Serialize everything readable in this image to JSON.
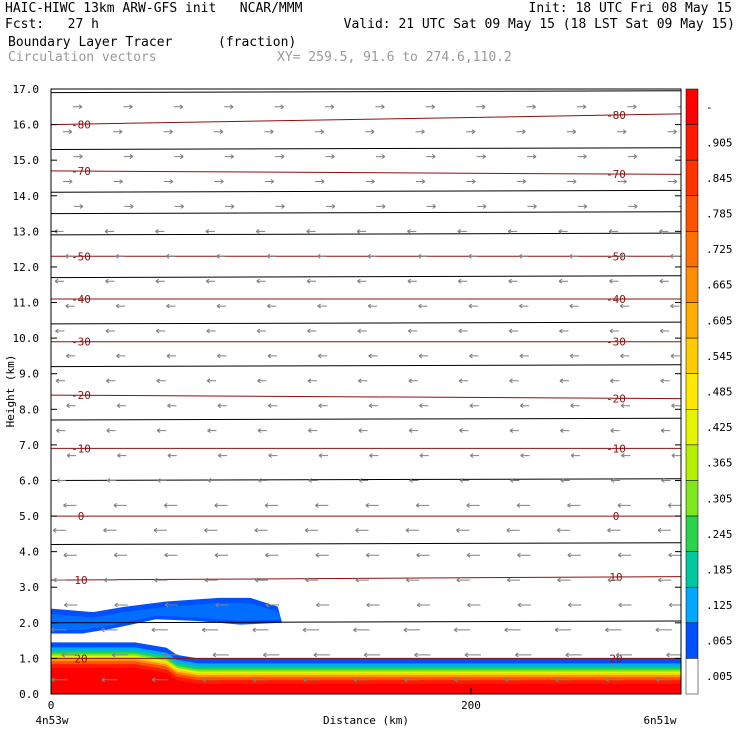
{
  "header": {
    "line1_left": "HAIC-HIWC 13km ARW-GFS init   NCAR/MMM",
    "line1_right": "Init: 18 UTC Fri 08 May 15",
    "line2_left": "Fcst:   27 h",
    "line2_right": "Valid: 21 UTC Sat 09 May 15 (18 LST Sat 09 May 15)",
    "field_name": "Boundary Layer Tracer",
    "field_units": "(fraction)",
    "vector_name": "Circulation vectors",
    "xy_range": "XY= 259.5, 91.6 to 274.6,110.2"
  },
  "chart_data": {
    "type": "heatmap",
    "title": "Boundary Layer Tracer",
    "xlabel": "Distance (km)",
    "ylabel": "Height (km)",
    "xlim": [
      0,
      300
    ],
    "ylim": [
      0,
      17
    ],
    "x_ticks": [
      0,
      200
    ],
    "x_tick_labels": [
      "0",
      "200"
    ],
    "x_end_labels": [
      "4n53w",
      "6n51w"
    ],
    "y_ticks": [
      0.0,
      1.0,
      2.0,
      3.0,
      4.0,
      5.0,
      6.0,
      7.0,
      8.0,
      9.0,
      10.0,
      11.0,
      12.0,
      13.0,
      14.0,
      15.0,
      16.0,
      17.0
    ],
    "y_tick_labels": [
      "0.0",
      "1.0",
      "2.0",
      "3.0",
      "4.0",
      "5.0",
      "6.0",
      "7.0",
      "8.0",
      "9.0",
      "10.0",
      "11.0",
      "12.0",
      "13.0",
      "14.0",
      "15.0",
      "16.0",
      "17.0"
    ],
    "colorbar": {
      "labels": [
        "-",
        ".905",
        ".845",
        ".785",
        ".725",
        ".665",
        ".605",
        ".545",
        ".485",
        ".425",
        ".365",
        ".305",
        ".245",
        ".185",
        ".125",
        ".065",
        ".005"
      ],
      "colors": [
        "#ff0000",
        "#ff1a00",
        "#ff3300",
        "#ff5200",
        "#ff7000",
        "#ff8f00",
        "#ffae00",
        "#ffcc00",
        "#ffe800",
        "#e6f400",
        "#b4f000",
        "#7de81e",
        "#2bd24b",
        "#00c8a0",
        "#00a8ff",
        "#0050ff",
        "#ffffff"
      ]
    },
    "tracer_field": {
      "boundary_layer_top_km": [
        [
          0,
          1.45
        ],
        [
          40,
          1.45
        ],
        [
          55,
          1.3
        ],
        [
          60,
          1.1
        ],
        [
          70,
          1.0
        ],
        [
          300,
          1.0
        ]
      ],
      "upper_blue_layer_km": [
        [
          0,
          2.4
        ],
        [
          20,
          2.3
        ],
        [
          35,
          2.45
        ],
        [
          55,
          2.6
        ],
        [
          80,
          2.7
        ],
        [
          95,
          2.7
        ],
        [
          108,
          2.45
        ],
        [
          110,
          2.0
        ],
        [
          90,
          1.95
        ],
        [
          70,
          2.05
        ],
        [
          50,
          2.1
        ],
        [
          30,
          1.85
        ],
        [
          15,
          1.7
        ],
        [
          0,
          1.7
        ]
      ]
    },
    "temperature_contours": [
      {
        "label": "-80",
        "y_left": 16.0,
        "y_right": 16.3
      },
      {
        "label": "-70",
        "y_left": 14.7,
        "y_right": 14.6
      },
      {
        "label": "-50",
        "y_left": 12.3,
        "y_right": 12.3
      },
      {
        "label": "-40",
        "y_left": 11.1,
        "y_right": 11.1
      },
      {
        "label": "-30",
        "y_left": 9.9,
        "y_right": 9.9
      },
      {
        "label": "-20",
        "y_left": 8.4,
        "y_right": 8.3
      },
      {
        "label": "-10",
        "y_left": 6.9,
        "y_right": 6.9
      },
      {
        "label": "0",
        "y_left": 5.0,
        "y_right": 5.0
      },
      {
        "label": "10",
        "y_left": 3.2,
        "y_right": 3.3
      },
      {
        "label": "20",
        "y_left": 1.0,
        "y_right": 1.0
      }
    ],
    "extra_contour_levels_km": [
      16.9,
      15.3,
      14.1,
      13.5,
      12.9,
      11.7,
      10.4,
      9.2,
      7.7,
      6.0,
      4.2,
      2.0
    ],
    "vectors": {
      "direction": "westward (leftward) in lower and middle levels, eastward (rightward) above ~13 km",
      "reversal_height_km": 13.2
    },
    "grid": false
  },
  "colors": {
    "contour": "#8b1010",
    "vector": "#808080",
    "muted_text": "#9a9a9a"
  }
}
